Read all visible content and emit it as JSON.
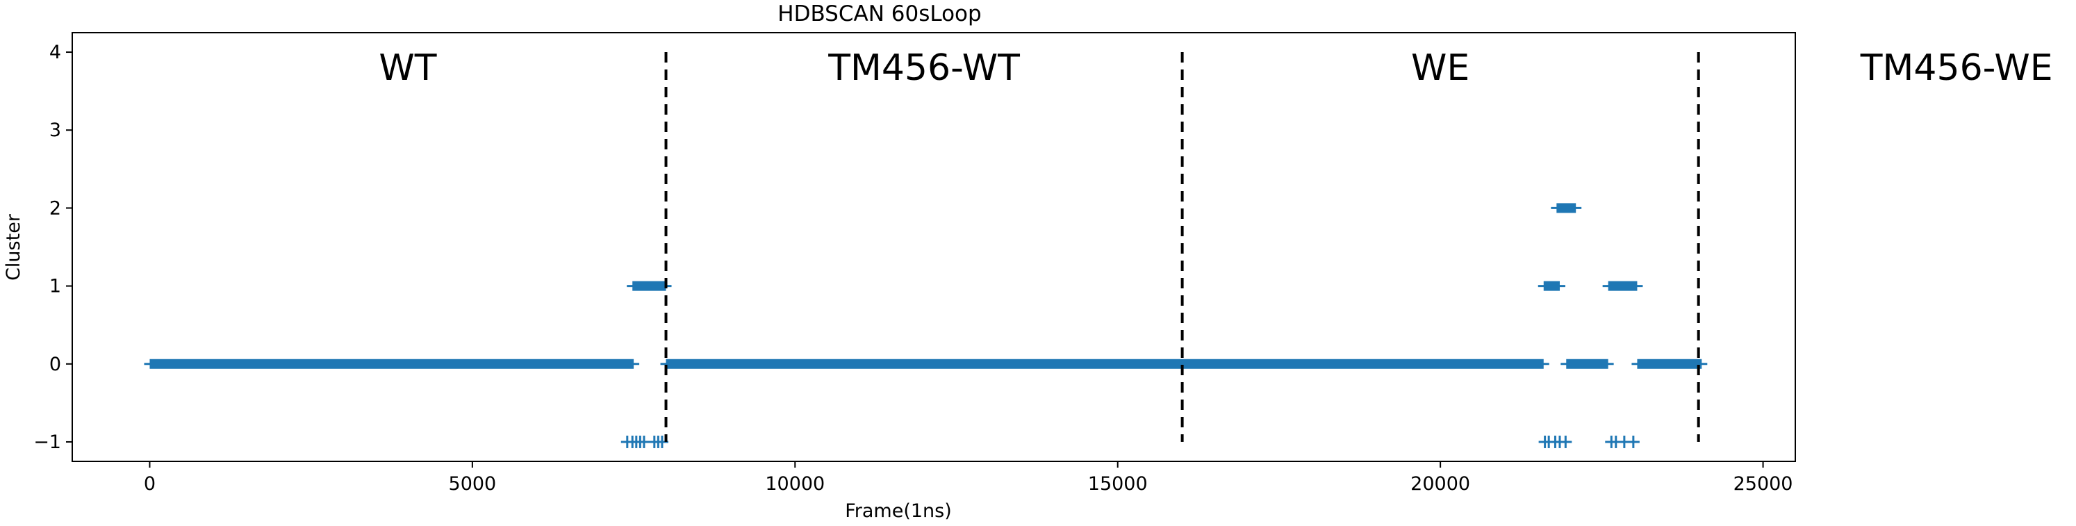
{
  "chart_data": {
    "type": "scatter",
    "title": "HDBSCAN 60sLoop",
    "xlabel": "Frame(1ns)",
    "ylabel": "Cluster",
    "xlim": [
      -1200,
      25500
    ],
    "ylim": [
      -1.25,
      4.25
    ],
    "xticks": [
      0,
      5000,
      10000,
      15000,
      20000,
      25000
    ],
    "xtick_labels": [
      "0",
      "5000",
      "10000",
      "15000",
      "20000",
      "25000"
    ],
    "yticks": [
      -1,
      0,
      1,
      2,
      3,
      4
    ],
    "ytick_labels": [
      "−1",
      "0",
      "1",
      "2",
      "3",
      "4"
    ],
    "grid": false,
    "marker": "+",
    "color": "#1f77b4",
    "divider_color": "#000000",
    "dividers": [
      8000,
      16000,
      24000
    ],
    "region_labels": [
      {
        "text": "WT",
        "x": 4000
      },
      {
        "text": "TM456-WT",
        "x": 12000
      },
      {
        "text": "WE",
        "x": 20000
      },
      {
        "text": "TM456-WE",
        "x": 28000
      }
    ],
    "series": [
      {
        "segments": [
          {
            "y": 0,
            "x": [
              0,
              7500
            ]
          },
          {
            "y": 1,
            "x": [
              7480,
              8000
            ]
          },
          {
            "y": 0,
            "x": [
              8000,
              21600
            ]
          },
          {
            "y": 1,
            "x": [
              21600,
              21850
            ]
          },
          {
            "y": 2,
            "x": [
              21800,
              22100
            ]
          },
          {
            "y": 0,
            "x": [
              21950,
              22600
            ]
          },
          {
            "y": 1,
            "x": [
              22600,
              23050
            ]
          },
          {
            "y": 0,
            "x": [
              23050,
              24050
            ]
          }
        ],
        "points": [
          {
            "y": -1,
            "x": 7400
          },
          {
            "y": -1,
            "x": 7480
          },
          {
            "y": -1,
            "x": 7540
          },
          {
            "y": -1,
            "x": 7600
          },
          {
            "y": -1,
            "x": 7660
          },
          {
            "y": -1,
            "x": 7820
          },
          {
            "y": -1,
            "x": 7880
          },
          {
            "y": -1,
            "x": 7940
          },
          {
            "y": -1,
            "x": 21620
          },
          {
            "y": -1,
            "x": 21680
          },
          {
            "y": -1,
            "x": 21780
          },
          {
            "y": -1,
            "x": 21850
          },
          {
            "y": -1,
            "x": 21940
          },
          {
            "y": -1,
            "x": 22650
          },
          {
            "y": -1,
            "x": 22720
          },
          {
            "y": -1,
            "x": 22850
          },
          {
            "y": -1,
            "x": 22990
          }
        ]
      }
    ]
  }
}
